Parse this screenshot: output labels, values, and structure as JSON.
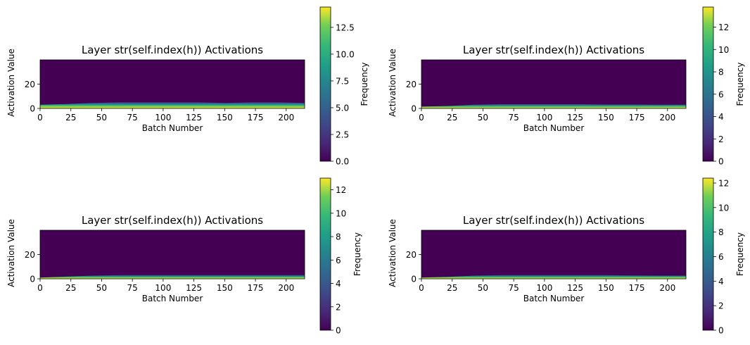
{
  "chart_data": [
    {
      "type": "heatmap",
      "title": "Layer str(self.index(h)) Activations",
      "xlabel": "Batch Number",
      "ylabel": "Activation Value",
      "colorbar_label": "Frequency",
      "colormap": "viridis",
      "xlim": [
        0,
        215
      ],
      "ylim": [
        0,
        40
      ],
      "xticks": [
        0,
        25,
        50,
        75,
        100,
        125,
        150,
        175,
        200
      ],
      "yticks": [
        0,
        20
      ],
      "colorbar_range": [
        0,
        14.4
      ],
      "colorbar_ticks": [
        "0.0",
        "2.5",
        "5.0",
        "7.5",
        "10.0",
        "12.5"
      ],
      "colorbar_tick_values": [
        0,
        2.5,
        5,
        7.5,
        10,
        12.5
      ],
      "activation_band_top": [
        3,
        3.6,
        4.5,
        5,
        5,
        5,
        5,
        4.5,
        5,
        5,
        4.5
      ]
    },
    {
      "type": "heatmap",
      "title": "Layer str(self.index(h)) Activations",
      "xlabel": "Batch Number",
      "ylabel": "Activation Value",
      "colorbar_label": "Frequency",
      "colormap": "viridis",
      "xlim": [
        0,
        215
      ],
      "ylim": [
        0,
        40
      ],
      "xticks": [
        0,
        25,
        50,
        75,
        100,
        125,
        150,
        175,
        200
      ],
      "yticks": [
        0,
        20
      ],
      "colorbar_range": [
        0,
        13.8
      ],
      "colorbar_ticks": [
        "0",
        "2",
        "4",
        "6",
        "8",
        "10",
        "12"
      ],
      "colorbar_tick_values": [
        0,
        2,
        4,
        6,
        8,
        10,
        12
      ],
      "activation_band_top": [
        1.5,
        2,
        3,
        3.5,
        3.5,
        3.5,
        3.5,
        3.2,
        3.2,
        3,
        3
      ]
    },
    {
      "type": "heatmap",
      "title": "Layer str(self.index(h)) Activations",
      "xlabel": "Batch Number",
      "ylabel": "Activation Value",
      "colorbar_label": "Frequency",
      "colormap": "viridis",
      "xlim": [
        0,
        215
      ],
      "ylim": [
        0,
        40
      ],
      "xticks": [
        0,
        25,
        50,
        75,
        100,
        125,
        150,
        175,
        200
      ],
      "yticks": [
        0,
        20
      ],
      "colorbar_range": [
        0,
        13
      ],
      "colorbar_ticks": [
        "0",
        "2",
        "4",
        "6",
        "8",
        "10",
        "12"
      ],
      "colorbar_tick_values": [
        0,
        2,
        4,
        6,
        8,
        10,
        12
      ],
      "activation_band_top": [
        1,
        1.8,
        2.6,
        3,
        3,
        3,
        3,
        3,
        3,
        3,
        3
      ]
    },
    {
      "type": "heatmap",
      "title": "Layer str(self.index(h)) Activations",
      "xlabel": "Batch Number",
      "ylabel": "Activation Value",
      "colorbar_label": "Frequency",
      "colormap": "viridis",
      "xlim": [
        0,
        215
      ],
      "ylim": [
        0,
        40
      ],
      "xticks": [
        0,
        25,
        50,
        75,
        100,
        125,
        150,
        175,
        200
      ],
      "yticks": [
        0,
        20
      ],
      "colorbar_range": [
        0,
        12.4
      ],
      "colorbar_ticks": [
        "0",
        "2",
        "4",
        "6",
        "8",
        "10",
        "12"
      ],
      "colorbar_tick_values": [
        0,
        2,
        4,
        6,
        8,
        10,
        12
      ],
      "activation_band_top": [
        1,
        1.6,
        2.6,
        3,
        3,
        3,
        3,
        3,
        2.8,
        2.6,
        2.6
      ]
    }
  ]
}
